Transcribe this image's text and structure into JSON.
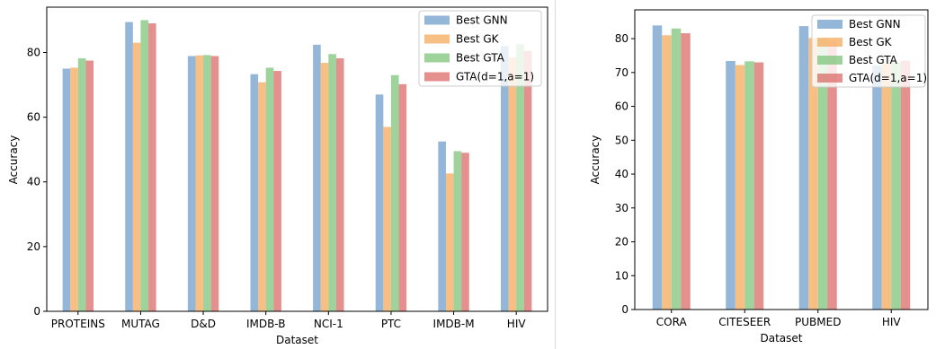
{
  "colors": {
    "series": [
      "#6f9ecc",
      "#f5a95c",
      "#7dc47a",
      "#d96b68"
    ],
    "axis": "#000000",
    "legend_border": "#cccccc",
    "divider": "#d9d9d9"
  },
  "bar_opacity": 0.75,
  "chart_data": [
    {
      "type": "bar",
      "title": "",
      "xlabel": "Dataset",
      "ylabel": "Accuracy",
      "ylim": [
        0,
        94
      ],
      "yticks": [
        0,
        20,
        40,
        60,
        80
      ],
      "grid": false,
      "legend_position": "top-right",
      "categories": [
        "PROTEINS",
        "MUTAG",
        "D&D",
        "IMDB-B",
        "NCI-1",
        "PTC",
        "IMDB-M",
        "HIV"
      ],
      "series": [
        {
          "name": "Best GNN",
          "values": [
            75.0,
            89.4,
            78.9,
            73.3,
            82.4,
            67.0,
            52.5,
            82.0
          ]
        },
        {
          "name": "Best GK",
          "values": [
            75.3,
            83.0,
            79.1,
            70.8,
            76.8,
            57.0,
            42.6,
            78.5
          ]
        },
        {
          "name": "Best GTA",
          "values": [
            78.2,
            90.0,
            79.2,
            75.3,
            79.5,
            73.0,
            49.5,
            82.5
          ]
        },
        {
          "name": "GTA(d=1,a=1)",
          "values": [
            77.5,
            89.0,
            78.9,
            74.3,
            78.2,
            70.2,
            49.0,
            80.5
          ]
        }
      ]
    },
    {
      "type": "bar",
      "title": "",
      "xlabel": "Dataset",
      "ylabel": "Accuracy",
      "ylim": [
        0,
        88.5
      ],
      "yticks": [
        0,
        10,
        20,
        30,
        40,
        50,
        60,
        70,
        80
      ],
      "grid": false,
      "legend_position": "top-right",
      "categories": [
        "CORA",
        "CITESEER",
        "PUBMED",
        "HIV"
      ],
      "series": [
        {
          "name": "Best GNN",
          "values": [
            83.9,
            73.4,
            83.7,
            72.0
          ]
        },
        {
          "name": "Best GK",
          "values": [
            81.0,
            72.2,
            80.2,
            72.5
          ]
        },
        {
          "name": "Best GTA",
          "values": [
            83.0,
            73.3,
            80.0,
            73.0
          ]
        },
        {
          "name": "GTA(d=1,a=1)",
          "values": [
            81.6,
            73.0,
            79.5,
            73.5
          ]
        }
      ]
    }
  ]
}
